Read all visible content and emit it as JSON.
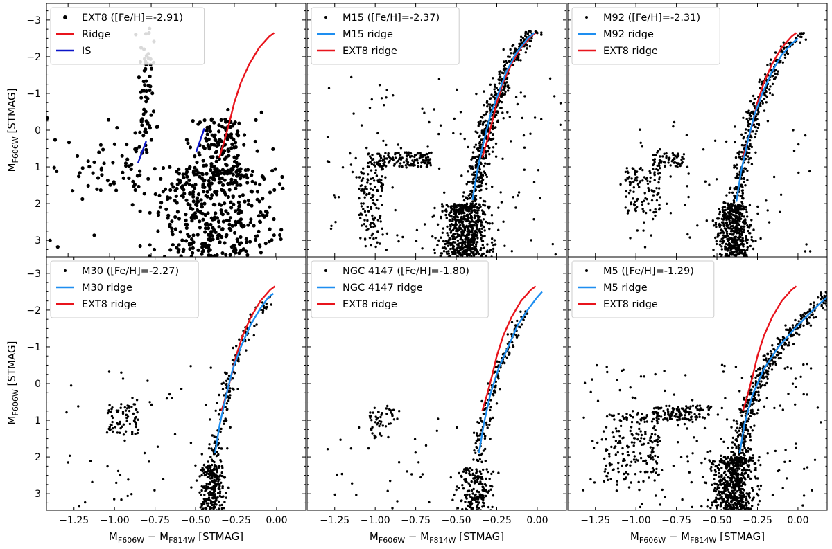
{
  "figure": {
    "ylabel": "M_F606W [STMAG]",
    "xlabel": "M_F606W − M_F814W [STMAG]"
  },
  "colors": {
    "ext8_ridge": "#e8141c",
    "cluster_ridge": "#1e8ef0",
    "is": "#0a14c8",
    "stars": "#000000"
  },
  "chart_data": [
    {
      "type": "scatter",
      "panel": "EXT8",
      "xlim": [
        -1.38,
        0.18
      ],
      "ylim": [
        3.45,
        -3.45
      ],
      "xticks": [
        -1.25,
        -1.0,
        -0.75,
        -0.5,
        -0.25,
        0.0
      ],
      "xtick_labels": [],
      "yticks": [
        3,
        2,
        1,
        0,
        -1,
        -2,
        -3
      ],
      "ytick_labels": [
        "3",
        "2",
        "1",
        "0",
        "−1",
        "−2",
        "−3"
      ],
      "legend_loc": "top-left",
      "legend": [
        {
          "kind": "marker",
          "label": "EXT8 ([Fe/H]=-2.91)"
        },
        {
          "kind": "line",
          "color": "#e8141c",
          "label": "Ridge"
        },
        {
          "kind": "line",
          "color": "#0a14c8",
          "label": "IS"
        }
      ],
      "lines": [
        {
          "color": "#e8141c",
          "points": [
            [
              -0.34,
              0.75
            ],
            [
              -0.31,
              0.3
            ],
            [
              -0.28,
              -0.2
            ],
            [
              -0.25,
              -0.75
            ],
            [
              -0.21,
              -1.3
            ],
            [
              -0.16,
              -1.8
            ],
            [
              -0.1,
              -2.25
            ],
            [
              -0.04,
              -2.55
            ],
            [
              -0.01,
              -2.65
            ]
          ]
        },
        {
          "color": "#0a14c8",
          "points": [
            [
              -0.83,
              0.9
            ],
            [
              -0.78,
              0.3
            ]
          ]
        },
        {
          "color": "#0a14c8",
          "points": [
            [
              -0.48,
              0.6
            ],
            [
              -0.43,
              -0.05
            ]
          ]
        }
      ],
      "points": {
        "seed": 11,
        "size": 2.6,
        "groups": [
          {
            "n": 400,
            "xc": -0.38,
            "xs": 0.19,
            "yr": [
              1.0,
              3.45
            ]
          },
          {
            "n": 150,
            "xc": -0.33,
            "xs": 0.09,
            "yr": [
              -0.3,
              1.5
            ]
          },
          {
            "n": 70,
            "ridge": true,
            "spread": 0.03,
            "yr": [
              -2.8,
              0.7
            ]
          },
          {
            "n": 45,
            "xr": [
              -1.2,
              -0.8
            ],
            "yr": [
              0.35,
              1.65
            ]
          },
          {
            "n": 40,
            "xr": [
              -1.38,
              0.15
            ],
            "yr": [
              -0.6,
              3.4
            ]
          }
        ]
      }
    },
    {
      "type": "scatter",
      "panel": "M15",
      "xlim": [
        -1.42,
        0.18
      ],
      "ylim": [
        3.45,
        -3.45
      ],
      "xticks": [
        -1.25,
        -1.0,
        -0.75,
        -0.5,
        -0.25,
        0.0
      ],
      "xtick_labels": [],
      "yticks": [
        3,
        2,
        1,
        0,
        -1,
        -2,
        -3
      ],
      "ytick_labels": [],
      "legend_loc": "top-left",
      "legend": [
        {
          "kind": "marker",
          "label": "M15 ([Fe/H]=-2.37)"
        },
        {
          "kind": "line",
          "color": "#1e8ef0",
          "label": "M15 ridge"
        },
        {
          "kind": "line",
          "color": "#e8141c",
          "label": "EXT8 ridge"
        }
      ],
      "lines": [
        {
          "color": "#e8141c",
          "points": [
            [
              -0.34,
              0.75
            ],
            [
              -0.31,
              0.3
            ],
            [
              -0.28,
              -0.2
            ],
            [
              -0.25,
              -0.75
            ],
            [
              -0.21,
              -1.3
            ],
            [
              -0.16,
              -1.8
            ],
            [
              -0.1,
              -2.25
            ],
            [
              -0.04,
              -2.55
            ],
            [
              -0.01,
              -2.65
            ]
          ]
        },
        {
          "color": "#1e8ef0",
          "points": [
            [
              -0.4,
              1.9
            ],
            [
              -0.37,
              1.1
            ],
            [
              -0.33,
              0.3
            ],
            [
              -0.29,
              -0.4
            ],
            [
              -0.24,
              -1.0
            ],
            [
              -0.19,
              -1.6
            ],
            [
              -0.13,
              -2.1
            ],
            [
              -0.06,
              -2.5
            ],
            [
              -0.02,
              -2.65
            ]
          ]
        }
      ],
      "points": {
        "seed": 23,
        "size": 1.7,
        "groups": [
          {
            "n": 600,
            "xc": -0.44,
            "xs": 0.07,
            "yr": [
              2.0,
              3.45
            ]
          },
          {
            "n": 500,
            "ridge": true,
            "spread": 0.03,
            "yr": [
              -2.7,
              2.2
            ]
          },
          {
            "n": 160,
            "xr": [
              -1.05,
              -0.65
            ],
            "yr": [
              0.6,
              1.0
            ]
          },
          {
            "n": 120,
            "xr": [
              -1.1,
              -0.95
            ],
            "yr": [
              1.0,
              3.2
            ]
          },
          {
            "n": 130,
            "xr": [
              -1.35,
              0.15
            ],
            "yr": [
              -1.5,
              3.4
            ]
          }
        ]
      }
    },
    {
      "type": "scatter",
      "panel": "M92",
      "xlim": [
        -1.42,
        0.18
      ],
      "ylim": [
        3.45,
        -3.45
      ],
      "xticks": [
        -1.25,
        -1.0,
        -0.75,
        -0.5,
        -0.25,
        0.0
      ],
      "xtick_labels": [],
      "yticks": [
        3,
        2,
        1,
        0,
        -1,
        -2,
        -3
      ],
      "ytick_labels": [],
      "legend_loc": "top-left",
      "legend": [
        {
          "kind": "marker",
          "label": "M92 ([Fe/H]=-2.31)"
        },
        {
          "kind": "line",
          "color": "#1e8ef0",
          "label": "M92 ridge"
        },
        {
          "kind": "line",
          "color": "#e8141c",
          "label": "EXT8 ridge"
        }
      ],
      "lines": [
        {
          "color": "#e8141c",
          "points": [
            [
              -0.34,
              0.75
            ],
            [
              -0.31,
              0.3
            ],
            [
              -0.28,
              -0.2
            ],
            [
              -0.25,
              -0.75
            ],
            [
              -0.21,
              -1.3
            ],
            [
              -0.16,
              -1.8
            ],
            [
              -0.1,
              -2.25
            ],
            [
              -0.04,
              -2.55
            ],
            [
              -0.01,
              -2.65
            ]
          ]
        },
        {
          "color": "#1e8ef0",
          "points": [
            [
              -0.38,
              1.95
            ],
            [
              -0.35,
              1.1
            ],
            [
              -0.31,
              0.3
            ],
            [
              -0.27,
              -0.4
            ],
            [
              -0.22,
              -1.0
            ],
            [
              -0.16,
              -1.6
            ],
            [
              -0.1,
              -2.05
            ],
            [
              -0.04,
              -2.35
            ],
            [
              0.0,
              -2.5
            ]
          ]
        }
      ],
      "points": {
        "seed": 37,
        "size": 1.7,
        "groups": [
          {
            "n": 450,
            "xc": -0.4,
            "xs": 0.05,
            "yr": [
              2.0,
              3.45
            ]
          },
          {
            "n": 320,
            "ridge": true,
            "spread": 0.025,
            "yr": [
              -2.7,
              2.2
            ]
          },
          {
            "n": 110,
            "xr": [
              -1.07,
              -0.85
            ],
            "yr": [
              1.0,
              2.3
            ]
          },
          {
            "n": 60,
            "xr": [
              -0.9,
              -0.7
            ],
            "yr": [
              0.6,
              1.0
            ]
          },
          {
            "n": 70,
            "xr": [
              -1.1,
              0.1
            ],
            "yr": [
              -0.3,
              3.4
            ]
          }
        ]
      }
    },
    {
      "type": "scatter",
      "panel": "M30",
      "xlim": [
        -1.42,
        0.18
      ],
      "ylim": [
        3.45,
        -3.45
      ],
      "xticks": [
        -1.25,
        -1.0,
        -0.75,
        -0.5,
        -0.25,
        0.0
      ],
      "xtick_labels": [
        "−1.25",
        "−1.00",
        "−0.75",
        "−0.50",
        "−0.25",
        "0.00"
      ],
      "yticks": [
        3,
        2,
        1,
        0,
        -1,
        -2,
        -3
      ],
      "ytick_labels": [
        "3",
        "2",
        "1",
        "0",
        "−1",
        "−2",
        "−3"
      ],
      "legend_loc": "top-left",
      "legend": [
        {
          "kind": "marker",
          "label": "M30 ([Fe/H]=-2.27)"
        },
        {
          "kind": "line",
          "color": "#1e8ef0",
          "label": "M30 ridge"
        },
        {
          "kind": "line",
          "color": "#e8141c",
          "label": "EXT8 ridge"
        }
      ],
      "lines": [
        {
          "color": "#e8141c",
          "points": [
            [
              -0.34,
              0.75
            ],
            [
              -0.31,
              0.3
            ],
            [
              -0.28,
              -0.2
            ],
            [
              -0.25,
              -0.75
            ],
            [
              -0.21,
              -1.3
            ],
            [
              -0.16,
              -1.8
            ],
            [
              -0.1,
              -2.25
            ],
            [
              -0.04,
              -2.55
            ],
            [
              -0.01,
              -2.65
            ]
          ]
        },
        {
          "color": "#1e8ef0",
          "points": [
            [
              -0.38,
              1.9
            ],
            [
              -0.35,
              1.1
            ],
            [
              -0.31,
              0.3
            ],
            [
              -0.27,
              -0.4
            ],
            [
              -0.22,
              -1.0
            ],
            [
              -0.16,
              -1.6
            ],
            [
              -0.1,
              -2.05
            ],
            [
              -0.05,
              -2.35
            ],
            [
              -0.02,
              -2.45
            ]
          ]
        }
      ],
      "points": {
        "seed": 41,
        "size": 1.7,
        "groups": [
          {
            "n": 220,
            "xc": -0.4,
            "xs": 0.04,
            "yr": [
              2.2,
              3.45
            ]
          },
          {
            "n": 150,
            "ridge": true,
            "spread": 0.025,
            "yr": [
              -2.4,
              2.2
            ]
          },
          {
            "n": 70,
            "xr": [
              -1.05,
              -0.85
            ],
            "yr": [
              0.55,
              1.4
            ]
          },
          {
            "n": 55,
            "xr": [
              -1.3,
              -0.2
            ],
            "yr": [
              -0.5,
              3.4
            ]
          }
        ]
      }
    },
    {
      "type": "scatter",
      "panel": "NGC 4147",
      "xlim": [
        -1.42,
        0.18
      ],
      "ylim": [
        3.45,
        -3.45
      ],
      "xticks": [
        -1.25,
        -1.0,
        -0.75,
        -0.5,
        -0.25,
        0.0
      ],
      "xtick_labels": [
        "−1.25",
        "−1.00",
        "−0.75",
        "−0.50",
        "−0.25",
        "0.00"
      ],
      "yticks": [
        3,
        2,
        1,
        0,
        -1,
        -2,
        -3
      ],
      "ytick_labels": [],
      "legend_loc": "top-left",
      "legend": [
        {
          "kind": "marker",
          "label": "NGC 4147 ([Fe/H]=-1.80)"
        },
        {
          "kind": "line",
          "color": "#1e8ef0",
          "label": "NGC 4147 ridge"
        },
        {
          "kind": "line",
          "color": "#e8141c",
          "label": "EXT8 ridge"
        }
      ],
      "lines": [
        {
          "color": "#e8141c",
          "points": [
            [
              -0.34,
              0.75
            ],
            [
              -0.31,
              0.3
            ],
            [
              -0.28,
              -0.2
            ],
            [
              -0.25,
              -0.75
            ],
            [
              -0.21,
              -1.3
            ],
            [
              -0.16,
              -1.8
            ],
            [
              -0.1,
              -2.25
            ],
            [
              -0.04,
              -2.55
            ],
            [
              -0.01,
              -2.65
            ]
          ]
        },
        {
          "color": "#1e8ef0",
          "points": [
            [
              -0.36,
              1.9
            ],
            [
              -0.33,
              1.1
            ],
            [
              -0.29,
              0.3
            ],
            [
              -0.24,
              -0.4
            ],
            [
              -0.18,
              -1.0
            ],
            [
              -0.12,
              -1.6
            ],
            [
              -0.06,
              -2.0
            ],
            [
              0.0,
              -2.35
            ],
            [
              0.03,
              -2.5
            ]
          ]
        }
      ],
      "points": {
        "seed": 53,
        "size": 1.7,
        "groups": [
          {
            "n": 170,
            "xc": -0.38,
            "xs": 0.05,
            "yr": [
              2.3,
              3.45
            ]
          },
          {
            "n": 160,
            "ridge": true,
            "spread": 0.02,
            "yr": [
              -2.0,
              2.2
            ]
          },
          {
            "n": 45,
            "xr": [
              -1.05,
              -0.85
            ],
            "yr": [
              0.6,
              1.5
            ]
          },
          {
            "n": 40,
            "xr": [
              -1.3,
              -0.2
            ],
            "yr": [
              0.5,
              3.4
            ]
          }
        ]
      }
    },
    {
      "type": "scatter",
      "panel": "M5",
      "xlim": [
        -1.42,
        0.18
      ],
      "ylim": [
        3.45,
        -3.45
      ],
      "xticks": [
        -1.25,
        -1.0,
        -0.75,
        -0.5,
        -0.25,
        0.0
      ],
      "xtick_labels": [
        "−1.25",
        "−1.00",
        "−0.75",
        "−0.50",
        "−0.25",
        "0.00"
      ],
      "yticks": [
        3,
        2,
        1,
        0,
        -1,
        -2,
        -3
      ],
      "ytick_labels": [],
      "legend_loc": "top-left",
      "legend": [
        {
          "kind": "marker",
          "label": "M5 ([Fe/H]=-1.29)"
        },
        {
          "kind": "line",
          "color": "#1e8ef0",
          "label": "M5 ridge"
        },
        {
          "kind": "line",
          "color": "#e8141c",
          "label": "EXT8 ridge"
        }
      ],
      "lines": [
        {
          "color": "#e8141c",
          "points": [
            [
              -0.34,
              0.75
            ],
            [
              -0.31,
              0.3
            ],
            [
              -0.28,
              -0.2
            ],
            [
              -0.25,
              -0.75
            ],
            [
              -0.21,
              -1.3
            ],
            [
              -0.16,
              -1.8
            ],
            [
              -0.1,
              -2.25
            ],
            [
              -0.04,
              -2.55
            ],
            [
              -0.01,
              -2.65
            ]
          ]
        },
        {
          "color": "#1e8ef0",
          "points": [
            [
              -0.36,
              1.9
            ],
            [
              -0.33,
              1.1
            ],
            [
              -0.28,
              0.3
            ],
            [
              -0.21,
              -0.4
            ],
            [
              -0.12,
              -1.0
            ],
            [
              -0.02,
              -1.5
            ],
            [
              0.07,
              -1.9
            ],
            [
              0.14,
              -2.2
            ],
            [
              0.18,
              -2.35
            ]
          ]
        }
      ],
      "points": {
        "seed": 67,
        "size": 1.7,
        "groups": [
          {
            "n": 550,
            "xc": -0.4,
            "xs": 0.06,
            "yr": [
              2.0,
              3.45
            ]
          },
          {
            "n": 420,
            "ridge": true,
            "spread": 0.03,
            "yr": [
              -2.5,
              2.2
            ]
          },
          {
            "n": 180,
            "xr": [
              -1.2,
              -0.85
            ],
            "yr": [
              0.8,
              2.7
            ]
          },
          {
            "n": 120,
            "xr": [
              -0.9,
              -0.55
            ],
            "yr": [
              0.6,
              1.0
            ]
          },
          {
            "n": 160,
            "xr": [
              -1.35,
              0.15
            ],
            "yr": [
              -0.6,
              3.4
            ]
          }
        ]
      }
    }
  ]
}
